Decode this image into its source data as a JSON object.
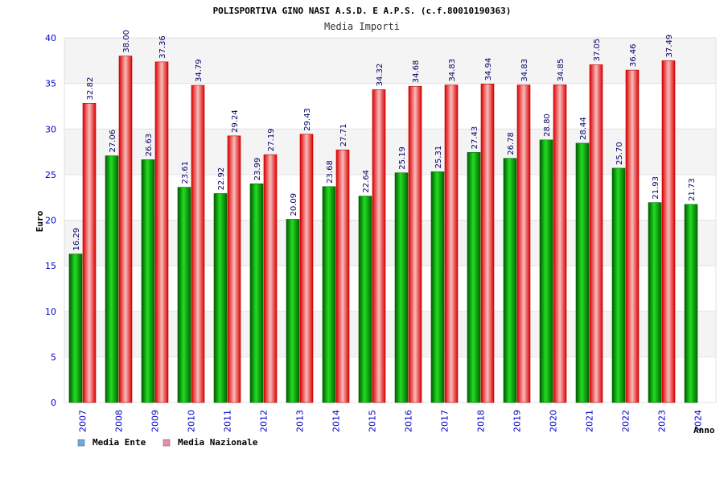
{
  "chart_data": {
    "type": "bar",
    "title": "POLISPORTIVA GINO NASI A.S.D. E A.P.S. (c.f.80010190363)",
    "subtitle": "Media Importi",
    "ylabel": "Euro",
    "xlabel": "Anno",
    "ylim": [
      0,
      40
    ],
    "yticks": [
      0,
      5,
      10,
      15,
      20,
      25,
      30,
      35,
      40
    ],
    "categories": [
      "2007",
      "2008",
      "2009",
      "2010",
      "2011",
      "2012",
      "2013",
      "2014",
      "2015",
      "2016",
      "2017",
      "2018",
      "2019",
      "2020",
      "2021",
      "2022",
      "2023",
      "2024"
    ],
    "series": [
      {
        "name": "Media Ente",
        "color": "#00aa00",
        "legend_color": "#6fa8e6",
        "values": [
          16.29,
          27.06,
          26.63,
          23.61,
          22.92,
          23.99,
          20.09,
          23.68,
          22.64,
          25.19,
          25.31,
          27.43,
          26.78,
          28.8,
          28.44,
          25.7,
          21.93,
          21.73
        ],
        "labels": [
          "16.29",
          "27.06",
          "26.63",
          "23.61",
          "22.92",
          "23.99",
          "20.09",
          "23.68",
          "22.64",
          "25.19",
          "25.31",
          "27.43",
          "26.78",
          "28.80",
          "28.44",
          "25.70",
          "21.93",
          "21.73"
        ]
      },
      {
        "name": "Media Nazionale",
        "color": "#ee1111",
        "legend_color": "#e58fb0",
        "values": [
          32.82,
          38.0,
          37.36,
          34.79,
          29.24,
          27.19,
          29.43,
          27.71,
          34.32,
          34.68,
          34.83,
          34.94,
          34.83,
          34.85,
          37.05,
          36.46,
          37.49,
          null
        ],
        "labels": [
          "32.82",
          "38.00",
          "37.36",
          "34.79",
          "29.24",
          "27.19",
          "29.43",
          "27.71",
          "34.32",
          "34.68",
          "34.83",
          "34.94",
          "34.83",
          "34.85",
          "37.05",
          "36.46",
          "37.49",
          null
        ]
      }
    ],
    "grid": true,
    "legend_position": "bottom-left"
  }
}
